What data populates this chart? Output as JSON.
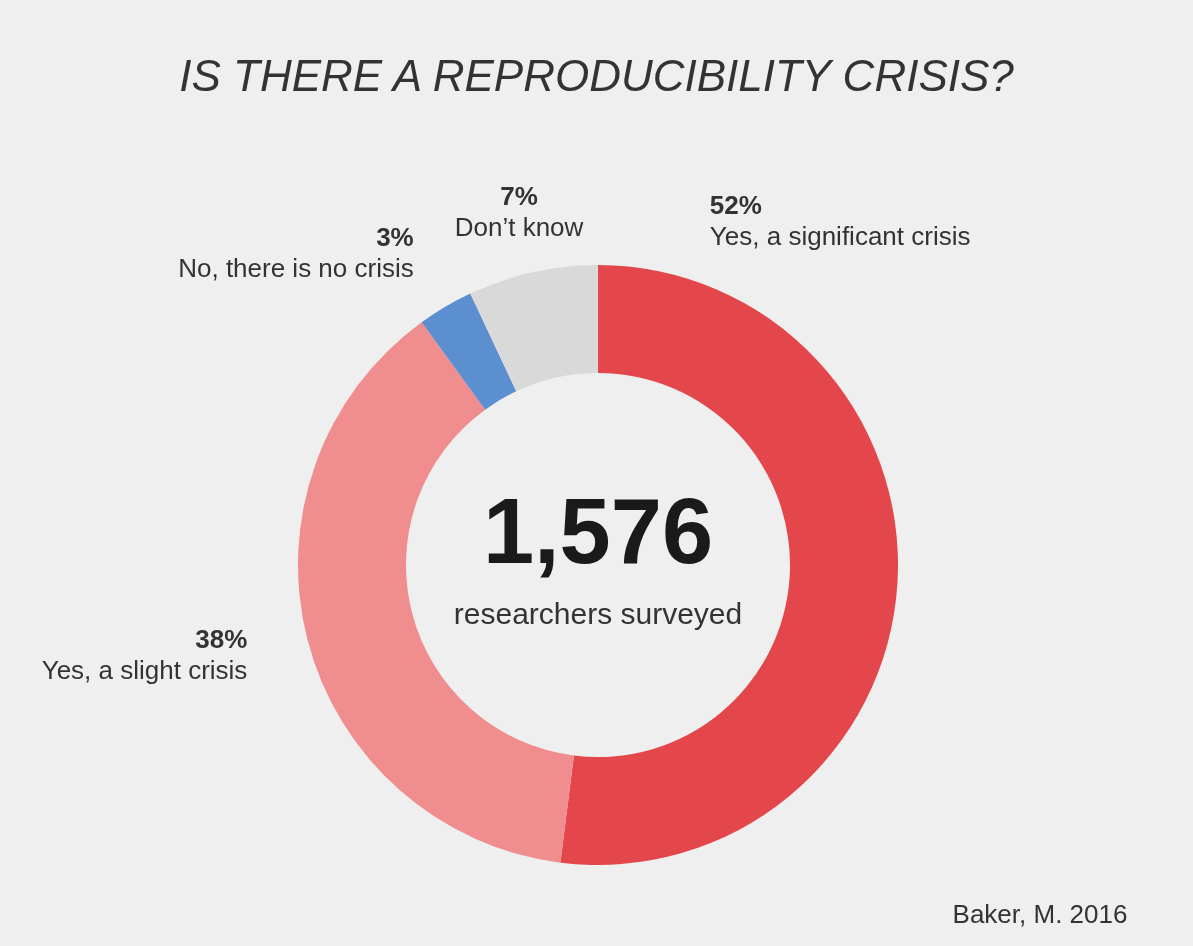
{
  "chart_data": {
    "type": "donut",
    "title": "IS THERE A REPRODUCIBILITY CRISIS?",
    "categories": [
      "Yes, a significant crisis",
      "Yes, a slight crisis",
      "No, there is no crisis",
      "Don’t know"
    ],
    "values": [
      52,
      38,
      3,
      7
    ],
    "colors": [
      "#e3474c",
      "#ef8d8f",
      "#5b8fd0",
      "#d9d9d9"
    ],
    "value_labels": [
      "52%",
      "38%",
      "3%",
      "7%"
    ],
    "legend": false,
    "annotations": [
      "1,576",
      "researchers surveyed",
      "Baker, M. 2016"
    ]
  }
}
